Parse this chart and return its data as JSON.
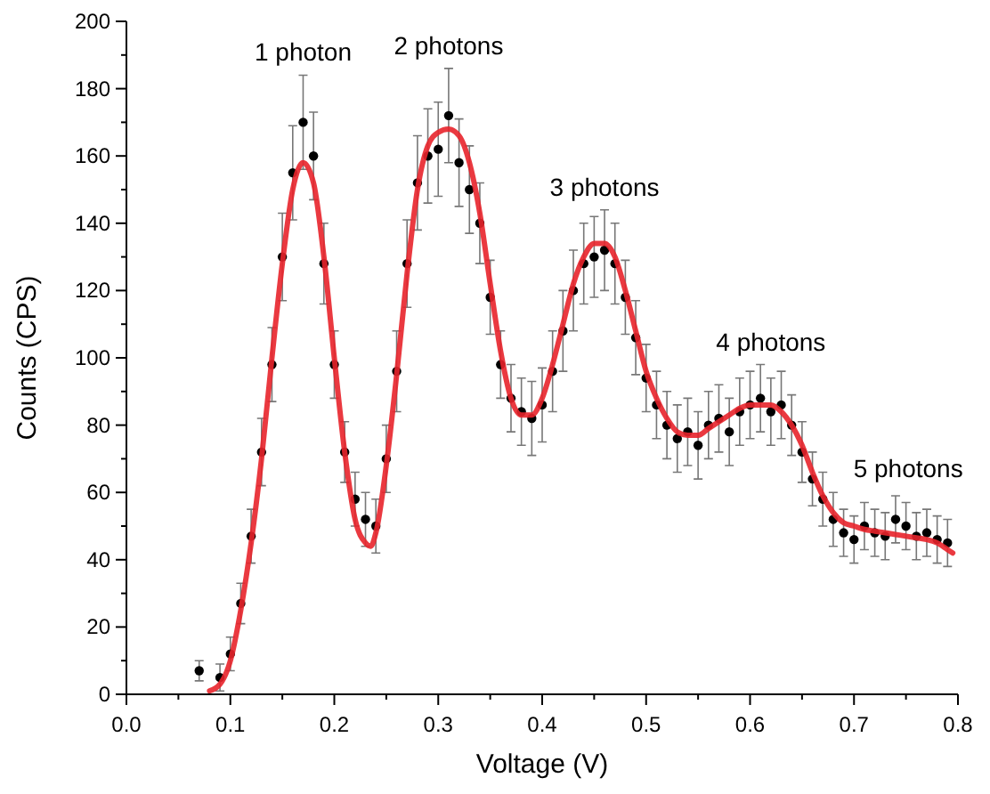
{
  "chart_data": {
    "type": "scatter",
    "xlabel": "Voltage (V)",
    "ylabel": "Counts (CPS)",
    "xlim": [
      0,
      0.8
    ],
    "ylim": [
      0,
      200
    ],
    "xticks": [
      {
        "value": 0,
        "label": "0.0"
      },
      0.1,
      0.2,
      0.3,
      0.4,
      0.5,
      0.6,
      0.7,
      0.8
    ],
    "yticks": [
      0,
      20,
      40,
      60,
      80,
      100,
      120,
      140,
      160,
      180,
      200
    ],
    "annotations": [
      "1 photon",
      "2 photons",
      "3 photons",
      "4 photons",
      "5 photons"
    ],
    "series": [
      {
        "type": "scatter",
        "color": "#000000",
        "marker": "circle",
        "x": [
          0.07,
          0.09,
          0.1,
          0.11,
          0.12,
          0.13,
          0.14,
          0.15,
          0.16,
          0.17,
          0.18,
          0.19,
          0.2,
          0.21,
          0.22,
          0.23,
          0.24,
          0.25,
          0.26,
          0.27,
          0.28,
          0.29,
          0.3,
          0.31,
          0.32,
          0.33,
          0.34,
          0.35,
          0.36,
          0.37,
          0.38,
          0.39,
          0.4,
          0.41,
          0.42,
          0.43,
          0.44,
          0.45,
          0.46,
          0.47,
          0.48,
          0.49,
          0.5,
          0.51,
          0.52,
          0.53,
          0.54,
          0.55,
          0.56,
          0.57,
          0.58,
          0.59,
          0.6,
          0.61,
          0.62,
          0.63,
          0.64,
          0.65,
          0.66,
          0.67,
          0.68,
          0.69,
          0.7,
          0.71,
          0.72,
          0.73,
          0.74,
          0.75,
          0.76,
          0.77,
          0.78,
          0.79
        ],
        "values": [
          7,
          5,
          12,
          27,
          47,
          72,
          98,
          130,
          155,
          170,
          160,
          128,
          98,
          72,
          58,
          52,
          50,
          70,
          96,
          128,
          152,
          160,
          162,
          172,
          158,
          150,
          140,
          118,
          98,
          88,
          84,
          82,
          86,
          96,
          108,
          120,
          128,
          130,
          132,
          128,
          118,
          106,
          94,
          86,
          80,
          76,
          78,
          74,
          80,
          82,
          78,
          84,
          86,
          88,
          84,
          86,
          80,
          72,
          64,
          58,
          52,
          48,
          46,
          50,
          48,
          47,
          52,
          50,
          47,
          48,
          46,
          45
        ],
        "errors": [
          3,
          4,
          5,
          6,
          8,
          10,
          11,
          13,
          14,
          14,
          13,
          12,
          10,
          9,
          8,
          8,
          8,
          10,
          12,
          13,
          14,
          14,
          14,
          14,
          13,
          13,
          12,
          11,
          10,
          10,
          10,
          11,
          11,
          12,
          12,
          12,
          12,
          12,
          12,
          12,
          11,
          11,
          10,
          10,
          10,
          10,
          10,
          10,
          10,
          10,
          10,
          10,
          10,
          10,
          10,
          10,
          9,
          9,
          8,
          8,
          8,
          7,
          7,
          7,
          7,
          7,
          7,
          7,
          7,
          7,
          7,
          7
        ]
      },
      {
        "type": "line",
        "color": "#e8242b",
        "x": [
          0.08,
          0.09,
          0.1,
          0.11,
          0.12,
          0.13,
          0.14,
          0.15,
          0.16,
          0.17,
          0.18,
          0.19,
          0.2,
          0.21,
          0.22,
          0.23,
          0.235,
          0.24,
          0.25,
          0.26,
          0.27,
          0.28,
          0.29,
          0.3,
          0.31,
          0.32,
          0.33,
          0.34,
          0.35,
          0.36,
          0.37,
          0.38,
          0.39,
          0.4,
          0.41,
          0.42,
          0.43,
          0.44,
          0.45,
          0.46,
          0.47,
          0.48,
          0.49,
          0.5,
          0.51,
          0.52,
          0.53,
          0.54,
          0.55,
          0.56,
          0.57,
          0.58,
          0.59,
          0.6,
          0.61,
          0.62,
          0.63,
          0.64,
          0.65,
          0.66,
          0.67,
          0.68,
          0.69,
          0.7,
          0.71,
          0.72,
          0.73,
          0.74,
          0.75,
          0.76,
          0.77,
          0.78,
          0.79,
          0.795
        ],
        "values": [
          1,
          3,
          10,
          25,
          45,
          70,
          100,
          128,
          150,
          158,
          152,
          130,
          100,
          72,
          52,
          45,
          44,
          48,
          68,
          95,
          125,
          150,
          163,
          167,
          168,
          166,
          158,
          143,
          122,
          102,
          88,
          83,
          83,
          88,
          98,
          110,
          122,
          130,
          134,
          134,
          130,
          120,
          108,
          96,
          88,
          82,
          78,
          77,
          77,
          79,
          81,
          83,
          85,
          86,
          86,
          86,
          84,
          80,
          74,
          66,
          59,
          54,
          51,
          50,
          49,
          48.5,
          48,
          47.5,
          47,
          46.5,
          46,
          45,
          43,
          42
        ]
      }
    ]
  }
}
